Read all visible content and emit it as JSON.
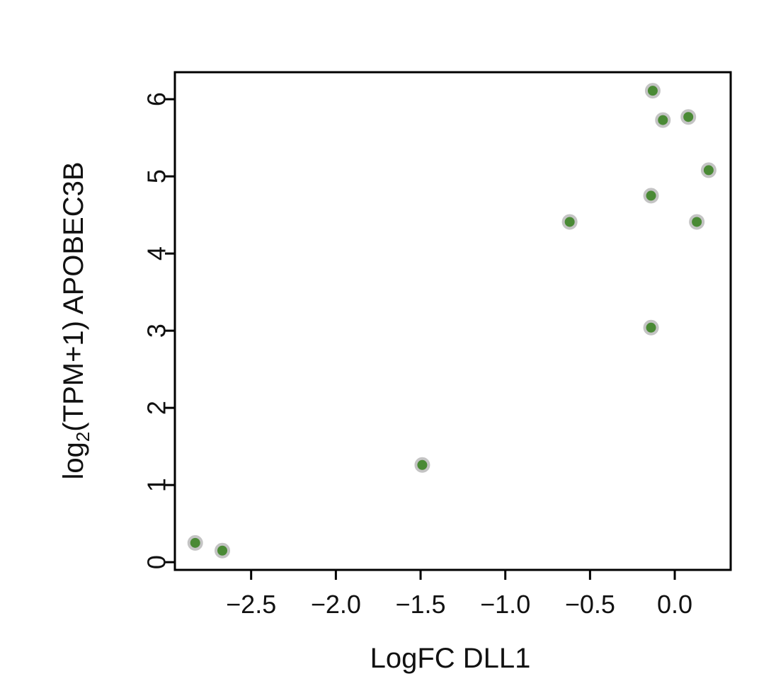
{
  "chart_data": {
    "type": "scatter",
    "title": "",
    "xlabel": "LogFC DLL1",
    "ylabel": {
      "prefix": "log",
      "subscript": "2",
      "suffix": "(TPM+1) APOBEC3B"
    },
    "xlim": [
      -2.95,
      0.33
    ],
    "ylim": [
      -0.1,
      6.35
    ],
    "x_ticks": [
      -2.5,
      -2.0,
      -1.5,
      -1.0,
      -0.5,
      0.0
    ],
    "x_tick_labels": [
      "−2.5",
      "−2.0",
      "−1.5",
      "−1.0",
      "−0.5",
      "0.0"
    ],
    "y_ticks": [
      0,
      1,
      2,
      3,
      4,
      5,
      6
    ],
    "y_tick_labels": [
      "0",
      "1",
      "2",
      "3",
      "4",
      "5",
      "6"
    ],
    "grid": false,
    "legend": null,
    "marker_fill": "#4a8a35",
    "marker_edge": "#c4c4c4",
    "points": [
      {
        "x": -2.83,
        "y": 0.25
      },
      {
        "x": -2.67,
        "y": 0.15
      },
      {
        "x": -1.49,
        "y": 1.26
      },
      {
        "x": -0.62,
        "y": 4.41
      },
      {
        "x": -0.14,
        "y": 4.75
      },
      {
        "x": -0.14,
        "y": 3.04
      },
      {
        "x": -0.13,
        "y": 6.11
      },
      {
        "x": -0.07,
        "y": 5.73
      },
      {
        "x": 0.08,
        "y": 5.77
      },
      {
        "x": 0.13,
        "y": 4.41
      },
      {
        "x": 0.2,
        "y": 5.08
      }
    ]
  }
}
